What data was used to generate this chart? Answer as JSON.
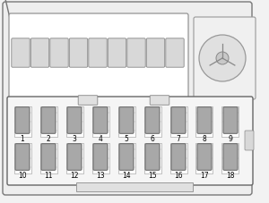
{
  "bg_color": "#f2f2f2",
  "fuse_color": "#a8a8a8",
  "fuse_border": "#666666",
  "box_bg": "#f8f8f8",
  "box_border": "#666666",
  "connector_bg": "#ffffff",
  "connector_border": "#aaaaaa",
  "row1_fuses": [
    1,
    2,
    3,
    4,
    5,
    6,
    7,
    8,
    9
  ],
  "row2_fuses": [
    10,
    11,
    12,
    13,
    14,
    15,
    16,
    17,
    18
  ],
  "label_fontsize": 5.5,
  "tab_color": "#e0e0e0",
  "tab_border": "#888888",
  "top_fuse_color": "#d0d0d0",
  "top_box_color": "#f0f0f0",
  "outer_color": "#eeeeee",
  "outer_border": "#777777",
  "circle_color": "#e0e0e0",
  "circle_border": "#999999"
}
